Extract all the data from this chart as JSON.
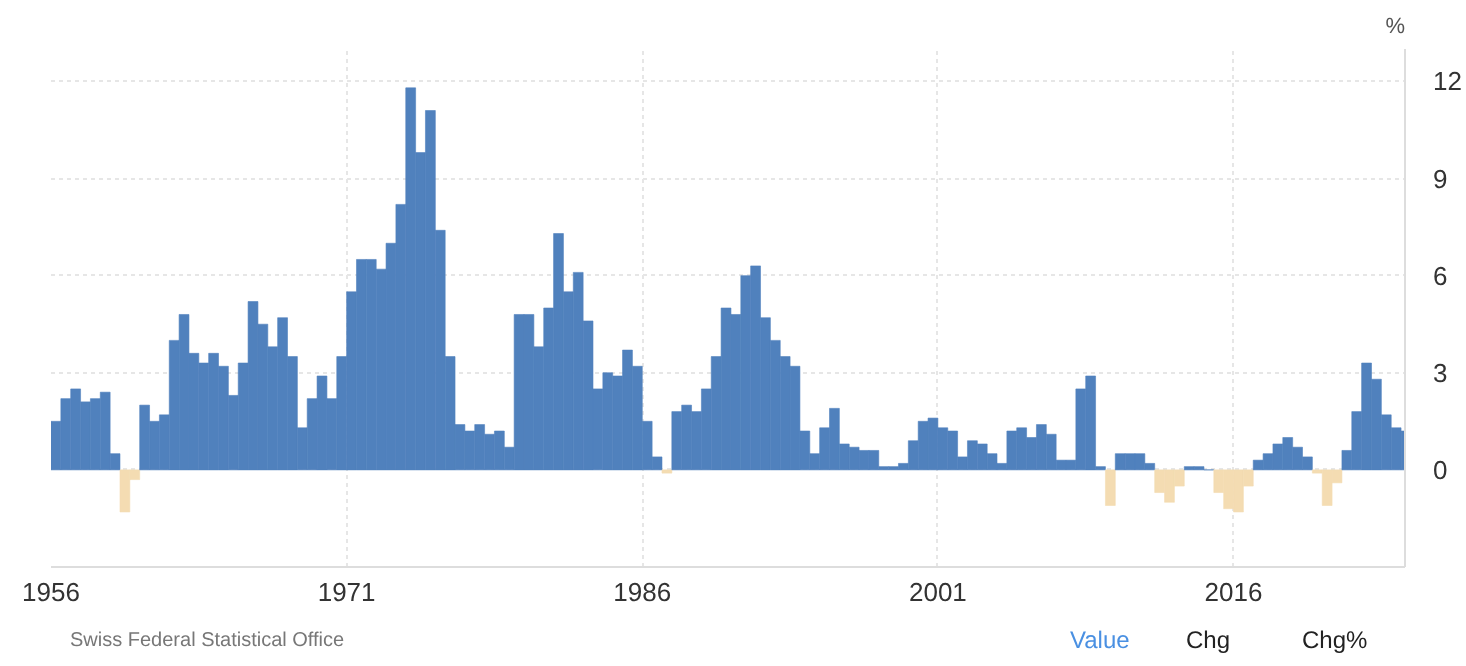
{
  "chart_data": {
    "type": "bar",
    "ylabel": "%",
    "x": [
      1956,
      1956.5,
      1957,
      1957.5,
      1958,
      1958.5,
      1959,
      1959.5,
      1960,
      1960.5,
      1961,
      1961.5,
      1962,
      1962.5,
      1963,
      1963.5,
      1964,
      1964.5,
      1965,
      1965.5,
      1966,
      1966.5,
      1967,
      1967.5,
      1968,
      1968.5,
      1969,
      1969.5,
      1970,
      1970.5,
      1971,
      1971.5,
      1972,
      1972.5,
      1973,
      1973.5,
      1974,
      1974.5,
      1975,
      1975.5,
      1976,
      1976.5,
      1977,
      1977.5,
      1978,
      1978.5,
      1979,
      1979.5,
      1980,
      1980.5,
      1981,
      1981.5,
      1982,
      1982.5,
      1983,
      1983.5,
      1984,
      1984.5,
      1985,
      1985.5,
      1986,
      1986.5,
      1987,
      1987.5,
      1988,
      1988.5,
      1989,
      1989.5,
      1990,
      1990.5,
      1991,
      1991.5,
      1992,
      1992.5,
      1993,
      1993.5,
      1994,
      1994.5,
      1995,
      1995.5,
      1996,
      1996.5,
      1997,
      1997.5,
      1998,
      1998.5,
      1999,
      1999.5,
      2000,
      2000.5,
      2001,
      2001.5,
      2002,
      2002.5,
      2003,
      2003.5,
      2004,
      2004.5,
      2005,
      2005.5,
      2006,
      2006.5,
      2007,
      2007.5,
      2008,
      2008.5,
      2009,
      2009.5,
      2010,
      2010.5,
      2011,
      2011.5,
      2012,
      2012.5,
      2013,
      2013.5,
      2014,
      2014.5,
      2015,
      2015.5,
      2016,
      2016.5,
      2017,
      2017.5,
      2018,
      2018.5,
      2019,
      2019.5,
      2020,
      2020.5,
      2021,
      2021.5,
      2022,
      2022.5,
      2023,
      2023.5,
      2024,
      2024.5
    ],
    "values": [
      1.5,
      2.2,
      2.5,
      2.1,
      2.2,
      2.4,
      0.5,
      -1.3,
      -0.3,
      2.0,
      1.5,
      1.7,
      4.0,
      4.8,
      3.6,
      3.3,
      3.6,
      3.2,
      2.3,
      3.3,
      5.2,
      4.5,
      3.8,
      4.7,
      3.5,
      1.3,
      2.2,
      2.9,
      2.2,
      3.5,
      5.5,
      6.5,
      6.5,
      6.2,
      7.0,
      8.2,
      11.8,
      9.8,
      11.1,
      7.4,
      3.5,
      1.4,
      1.2,
      1.4,
      1.1,
      1.2,
      0.7,
      4.8,
      4.8,
      3.8,
      5.0,
      7.3,
      5.5,
      6.1,
      4.6,
      2.5,
      3.0,
      2.9,
      3.7,
      3.2,
      1.5,
      0.4,
      -0.1,
      1.8,
      2.0,
      1.8,
      2.5,
      3.5,
      5.0,
      4.8,
      6.0,
      6.3,
      4.7,
      4.0,
      3.5,
      3.2,
      1.2,
      0.5,
      1.3,
      1.9,
      0.8,
      0.7,
      0.6,
      0.6,
      0.1,
      0.1,
      0.2,
      0.9,
      1.5,
      1.6,
      1.3,
      1.2,
      0.4,
      0.9,
      0.8,
      0.5,
      0.2,
      1.2,
      1.3,
      1.0,
      1.4,
      1.1,
      0.3,
      0.3,
      2.5,
      2.9,
      0.1,
      -1.1,
      0.5,
      0.5,
      0.5,
      0.2,
      -0.7,
      -1.0,
      -0.5,
      0.1,
      0.1,
      0.0,
      -0.7,
      -1.2,
      -1.3,
      -0.5,
      0.3,
      0.5,
      0.8,
      1.0,
      0.7,
      0.4,
      -0.1,
      -1.1,
      -0.4,
      0.6,
      1.8,
      3.3,
      2.8,
      1.7,
      1.3,
      1.2
    ],
    "colors": [
      "#5081bd",
      "#5081bd",
      "#5081bd",
      "#5081bd",
      "#5081bd",
      "#5081bd",
      "#5081bd",
      "#f4dcb2",
      "#f4dcb2",
      "#5081bd",
      "#5081bd",
      "#5081bd",
      "#5081bd",
      "#5081bd",
      "#5081bd",
      "#5081bd",
      "#5081bd",
      "#5081bd",
      "#5081bd",
      "#5081bd",
      "#5081bd",
      "#5081bd",
      "#5081bd",
      "#5081bd",
      "#5081bd",
      "#5081bd",
      "#5081bd",
      "#5081bd",
      "#5081bd",
      "#5081bd",
      "#5081bd",
      "#5081bd",
      "#5081bd",
      "#5081bd",
      "#5081bd",
      "#5081bd",
      "#5081bd",
      "#5081bd",
      "#5081bd",
      "#5081bd",
      "#5081bd",
      "#5081bd",
      "#5081bd",
      "#5081bd",
      "#5081bd",
      "#5081bd",
      "#5081bd",
      "#5081bd",
      "#5081bd",
      "#5081bd",
      "#5081bd",
      "#5081bd",
      "#5081bd",
      "#5081bd",
      "#5081bd",
      "#5081bd",
      "#5081bd",
      "#5081bd",
      "#5081bd",
      "#5081bd",
      "#5081bd",
      "#5081bd",
      "#f4dcb2",
      "#5081bd",
      "#5081bd",
      "#5081bd",
      "#5081bd",
      "#5081bd",
      "#5081bd",
      "#5081bd",
      "#5081bd",
      "#5081bd",
      "#5081bd",
      "#5081bd",
      "#5081bd",
      "#5081bd",
      "#5081bd",
      "#5081bd",
      "#5081bd",
      "#5081bd",
      "#5081bd",
      "#5081bd",
      "#5081bd",
      "#5081bd",
      "#5081bd",
      "#5081bd",
      "#5081bd",
      "#5081bd",
      "#5081bd",
      "#5081bd",
      "#5081bd",
      "#5081bd",
      "#5081bd",
      "#5081bd",
      "#5081bd",
      "#5081bd",
      "#5081bd",
      "#5081bd",
      "#5081bd",
      "#5081bd",
      "#5081bd",
      "#5081bd",
      "#5081bd",
      "#5081bd",
      "#5081bd",
      "#5081bd",
      "#5081bd",
      "#f4dcb2",
      "#5081bd",
      "#5081bd",
      "#5081bd",
      "#5081bd",
      "#f4dcb2",
      "#f4dcb2",
      "#f4dcb2",
      "#5081bd",
      "#5081bd",
      "#5081bd",
      "#f4dcb2",
      "#f4dcb2",
      "#f4dcb2",
      "#f4dcb2",
      "#5081bd",
      "#5081bd",
      "#5081bd",
      "#5081bd",
      "#5081bd",
      "#5081bd",
      "#f4dcb2",
      "#f4dcb2",
      "#f4dcb2",
      "#5081bd",
      "#5081bd",
      "#5081bd",
      "#5081bd",
      "#5081bd",
      "#5081bd",
      "#5081bd"
    ],
    "xlim": [
      1956,
      2024.7
    ],
    "xticks": [
      1956,
      1971,
      1986,
      2001,
      2016
    ],
    "ylim": [
      -3,
      13
    ],
    "yticks": [
      0,
      3,
      6,
      9,
      12
    ],
    "grid": true,
    "annotations": [
      "Swiss Federal Statistical Office",
      "Value",
      "Chg",
      "Chg%"
    ]
  }
}
